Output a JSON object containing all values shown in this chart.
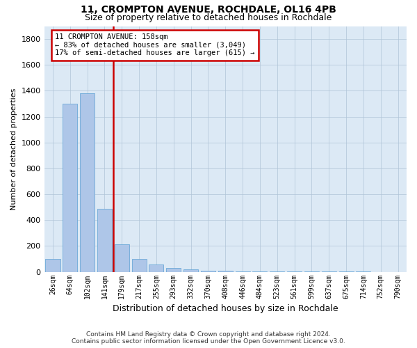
{
  "title": "11, CROMPTON AVENUE, ROCHDALE, OL16 4PB",
  "subtitle": "Size of property relative to detached houses in Rochdale",
  "xlabel": "Distribution of detached houses by size in Rochdale",
  "ylabel": "Number of detached properties",
  "footer_line1": "Contains HM Land Registry data © Crown copyright and database right 2024.",
  "footer_line2": "Contains public sector information licensed under the Open Government Licence v3.0.",
  "annotation_line1": "11 CROMPTON AVENUE: 158sqm",
  "annotation_line2": "← 83% of detached houses are smaller (3,049)",
  "annotation_line3": "17% of semi-detached houses are larger (615) →",
  "categories": [
    "26sqm",
    "64sqm",
    "102sqm",
    "141sqm",
    "179sqm",
    "217sqm",
    "255sqm",
    "293sqm",
    "332sqm",
    "370sqm",
    "408sqm",
    "446sqm",
    "484sqm",
    "523sqm",
    "561sqm",
    "599sqm",
    "637sqm",
    "675sqm",
    "714sqm",
    "752sqm",
    "790sqm"
  ],
  "values": [
    100,
    1300,
    1380,
    490,
    215,
    100,
    55,
    30,
    18,
    10,
    8,
    5,
    4,
    3,
    2,
    2,
    1,
    1,
    1,
    0,
    0
  ],
  "bar_color": "#aec6e8",
  "bar_edge_color": "#5a9fd4",
  "vline_color": "#cc0000",
  "vline_x_pos": 3.5,
  "annotation_box_color": "#cc0000",
  "background_color": "#ffffff",
  "plot_bg_color": "#dce9f5",
  "grid_color": "#b0c4d8",
  "ylim": [
    0,
    1900
  ],
  "yticks": [
    0,
    200,
    400,
    600,
    800,
    1000,
    1200,
    1400,
    1600,
    1800
  ]
}
